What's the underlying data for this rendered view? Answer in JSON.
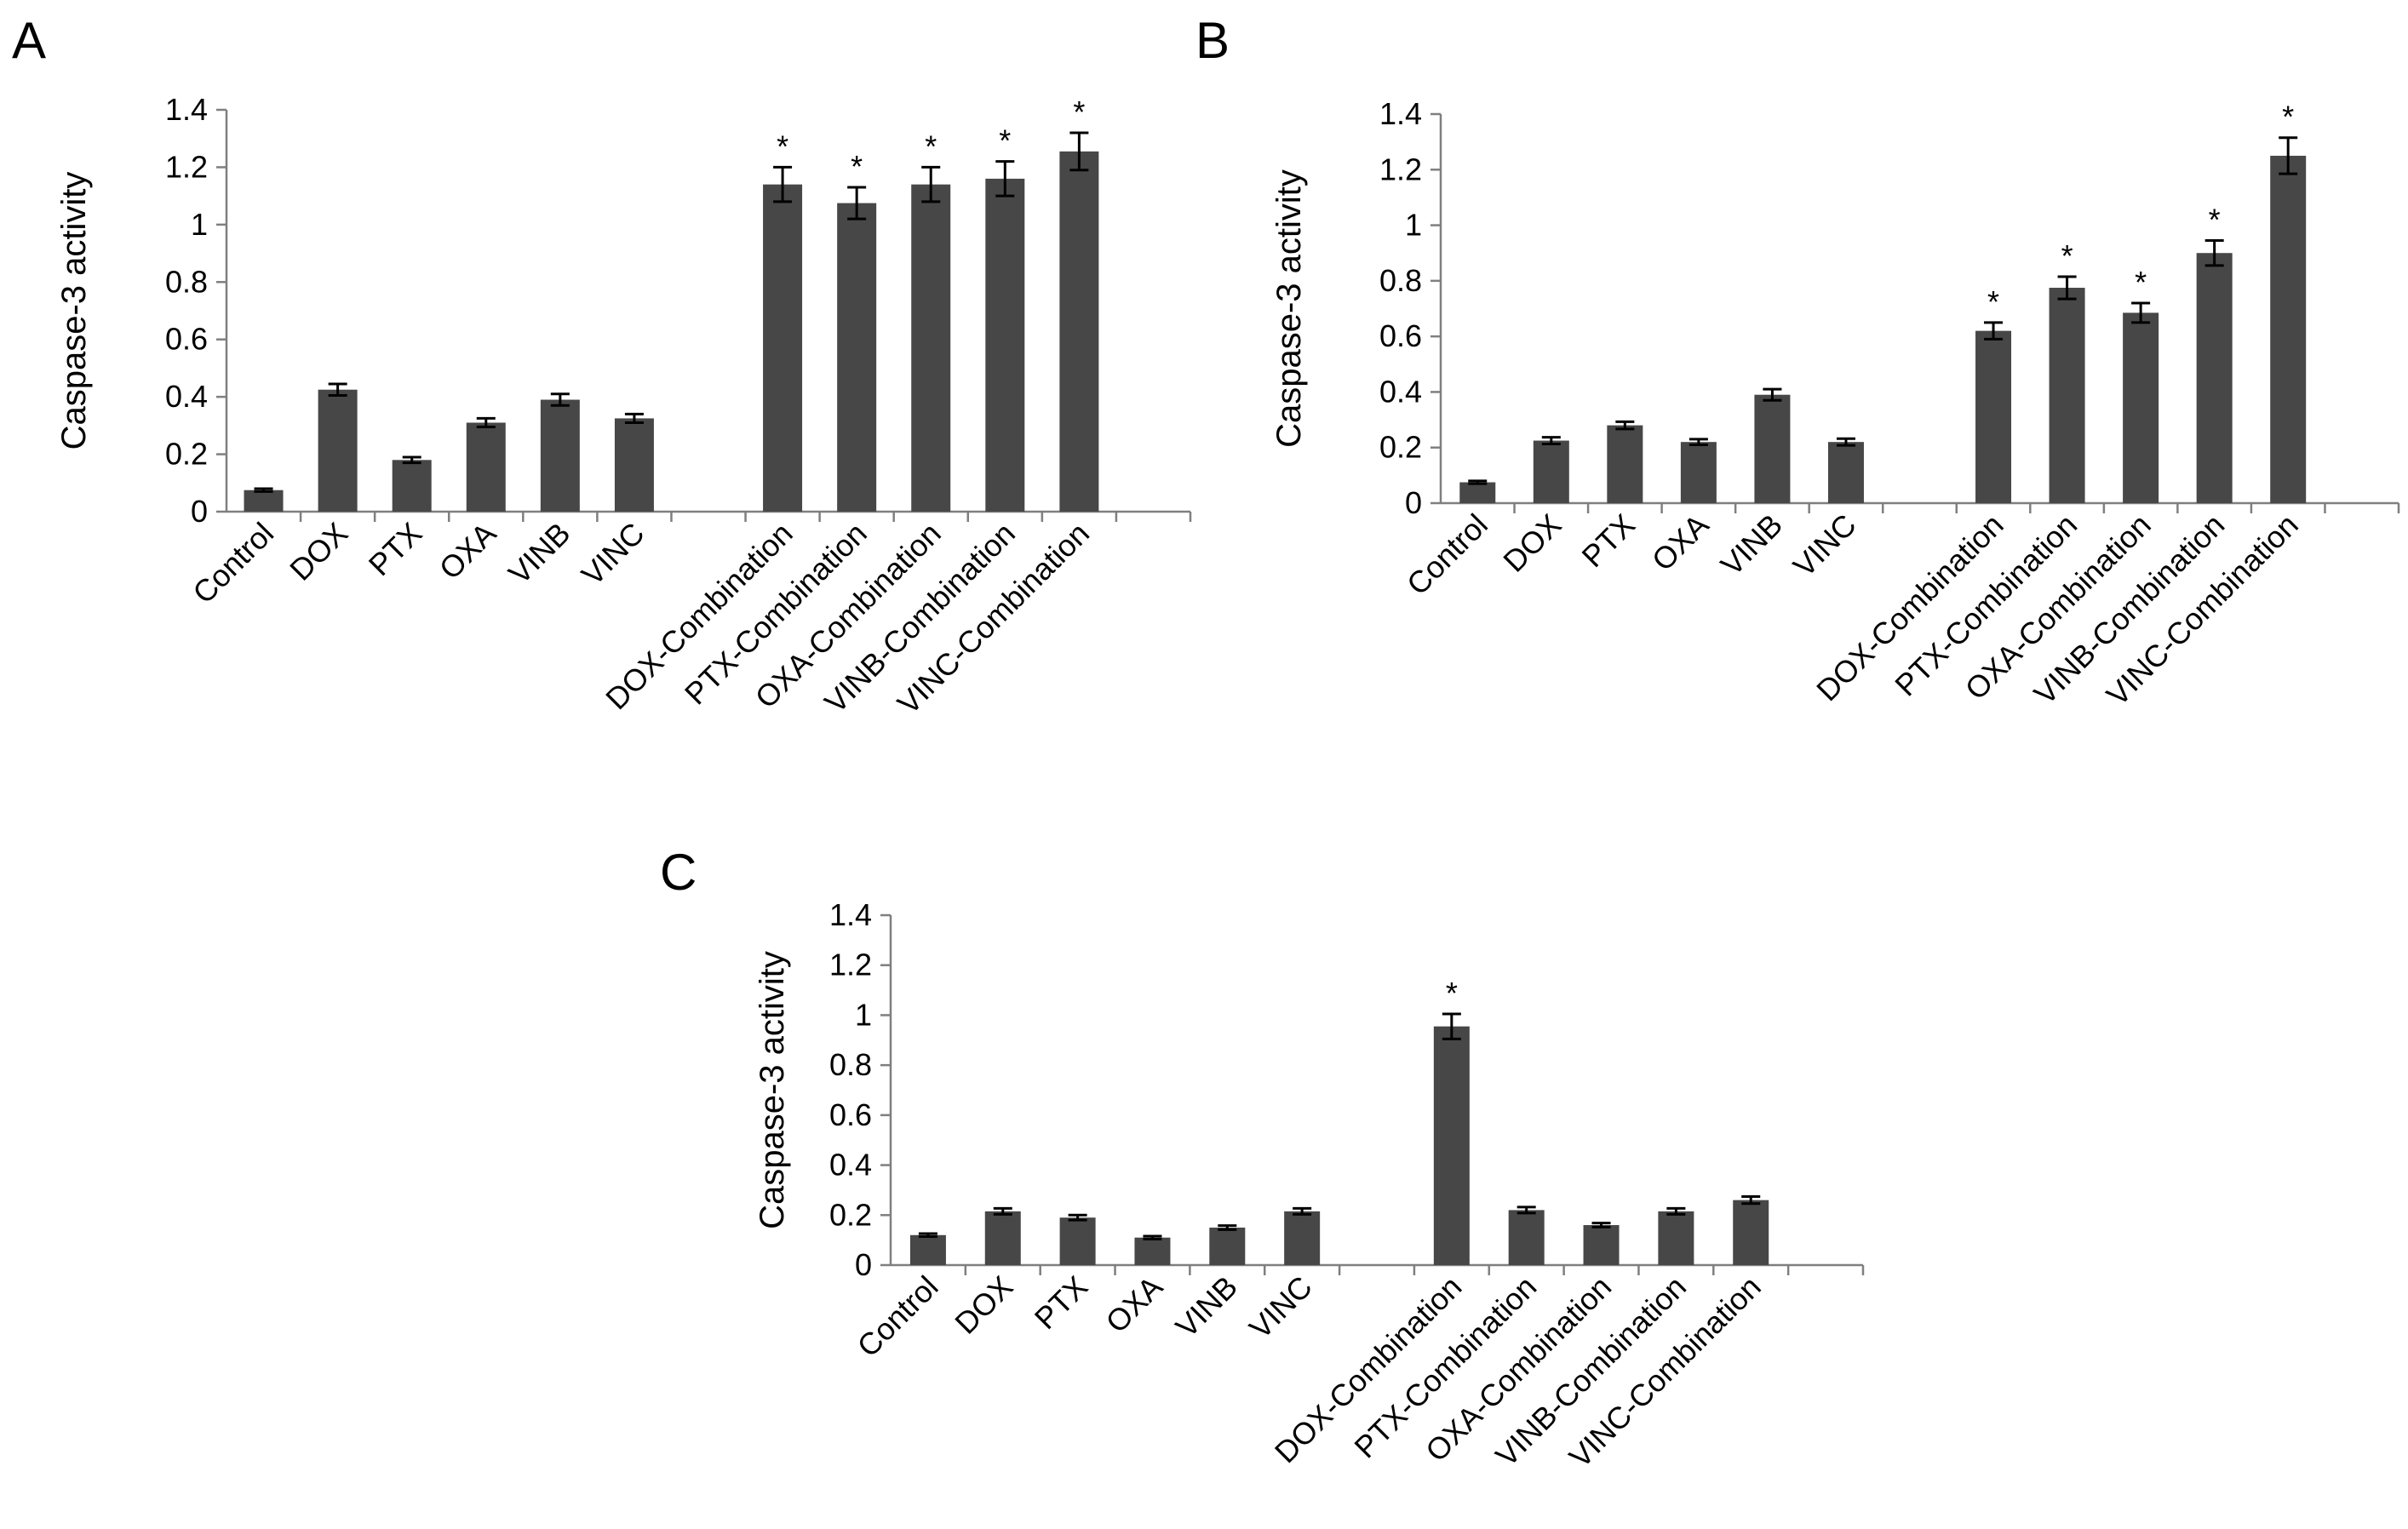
{
  "chart_data": [
    {
      "type": "bar",
      "panel": "A",
      "ylabel": "Caspase-3 activity",
      "xlabel": "",
      "ylim": [
        0,
        1.4
      ],
      "yticks": [
        "0",
        "0.2",
        "0.4",
        "0.6",
        "0.8",
        "1",
        "1.2",
        "1.4"
      ],
      "bar_color": "#474747",
      "categories": [
        "Control",
        "DOX",
        "PTX",
        "OXA",
        "VINB",
        "VINC",
        "",
        "DOX-Combination",
        "PTX-Combination",
        "OXA-Combination",
        "VINB-Combination",
        "VINC-Combination",
        ""
      ],
      "values": [
        0.075,
        0.425,
        0.18,
        0.31,
        0.39,
        0.325,
        null,
        1.14,
        1.075,
        1.14,
        1.16,
        1.255,
        null
      ],
      "errors": [
        0.005,
        0.02,
        0.01,
        0.015,
        0.02,
        0.015,
        null,
        0.06,
        0.055,
        0.06,
        0.06,
        0.065,
        null
      ],
      "significance": [
        "",
        "",
        "",
        "",
        "",
        "",
        "",
        "*",
        "*",
        "*",
        "*",
        "*",
        ""
      ]
    },
    {
      "type": "bar",
      "panel": "B",
      "ylabel": "Caspase-3 activity",
      "xlabel": "",
      "ylim": [
        0,
        1.4
      ],
      "yticks": [
        "0",
        "0.2",
        "0.4",
        "0.6",
        "0.8",
        "1",
        "1.2",
        "1.4"
      ],
      "bar_color": "#474747",
      "categories": [
        "Control",
        "DOX",
        "PTX",
        "OXA",
        "VINB",
        "VINC",
        "",
        "DOX-Combination",
        "PTX-Combination",
        "OXA-Combination",
        "VINB-Combination",
        "VINC-Combination",
        ""
      ],
      "values": [
        0.075,
        0.225,
        0.28,
        0.22,
        0.39,
        0.22,
        null,
        0.62,
        0.775,
        0.685,
        0.9,
        1.25,
        null
      ],
      "errors": [
        0.005,
        0.012,
        0.013,
        0.01,
        0.02,
        0.012,
        null,
        0.03,
        0.04,
        0.035,
        0.045,
        0.065,
        null
      ],
      "significance": [
        "",
        "",
        "",
        "",
        "",
        "",
        "",
        "*",
        "*",
        "*",
        "*",
        "*",
        ""
      ]
    },
    {
      "type": "bar",
      "panel": "C",
      "ylabel": "Caspase-3 activity",
      "xlabel": "",
      "ylim": [
        0,
        1.4
      ],
      "yticks": [
        "0",
        "0.2",
        "0.4",
        "0.6",
        "0.8",
        "1",
        "1.2",
        "1.4"
      ],
      "bar_color": "#474747",
      "categories": [
        "Control",
        "DOX",
        "PTX",
        "OXA",
        "VINB",
        "VINC",
        "",
        "DOX-Combination",
        "PTX-Combination",
        "OXA-Combination",
        "VINB-Combination",
        "VINC-Combination",
        ""
      ],
      "values": [
        0.12,
        0.215,
        0.19,
        0.11,
        0.15,
        0.215,
        null,
        0.955,
        0.22,
        0.16,
        0.215,
        0.26,
        null
      ],
      "errors": [
        0.006,
        0.012,
        0.01,
        0.006,
        0.008,
        0.012,
        null,
        0.05,
        0.012,
        0.008,
        0.012,
        0.014,
        null
      ],
      "significance": [
        "",
        "",
        "",
        "",
        "",
        "",
        "",
        "*",
        "",
        "",
        "",
        "",
        ""
      ]
    }
  ]
}
